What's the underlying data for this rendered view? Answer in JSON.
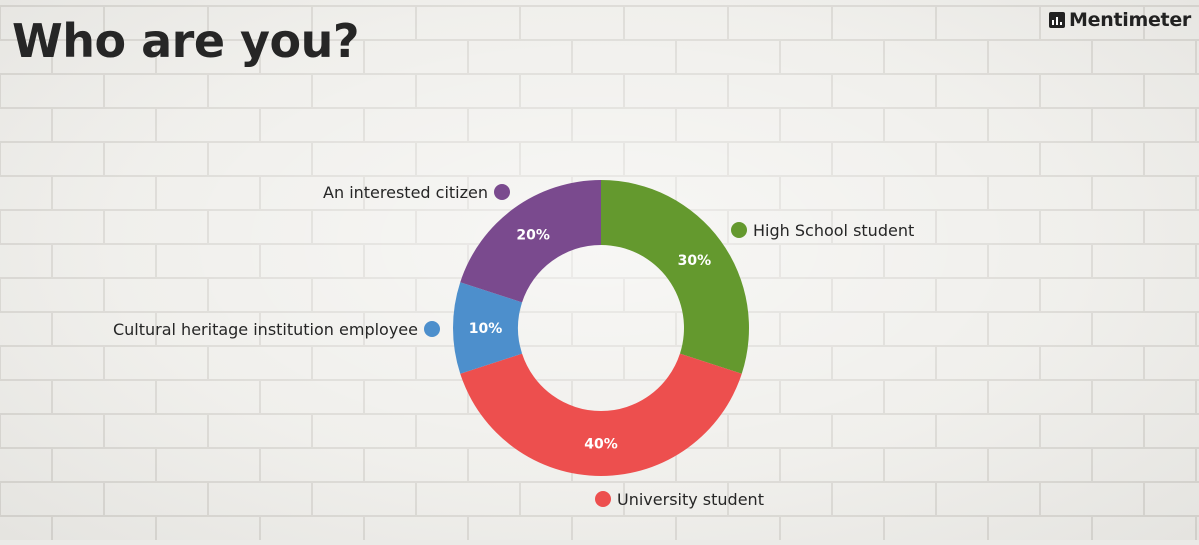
{
  "header": {
    "title": "Who are you?",
    "brand": "Mentimeter"
  },
  "chart_data": {
    "type": "pie",
    "donut": true,
    "title": "Who are you?",
    "categories": [
      "High School student",
      "University student",
      "Cultural heritage institution employee",
      "An interested citizen"
    ],
    "values": [
      30,
      40,
      10,
      20
    ],
    "value_labels": [
      "30%",
      "40%",
      "10%",
      "20%"
    ],
    "colors": [
      "#64992e",
      "#ed4f4e",
      "#4d8fcc",
      "#7a4a8e"
    ],
    "legend": "labels placed outside each slice"
  }
}
